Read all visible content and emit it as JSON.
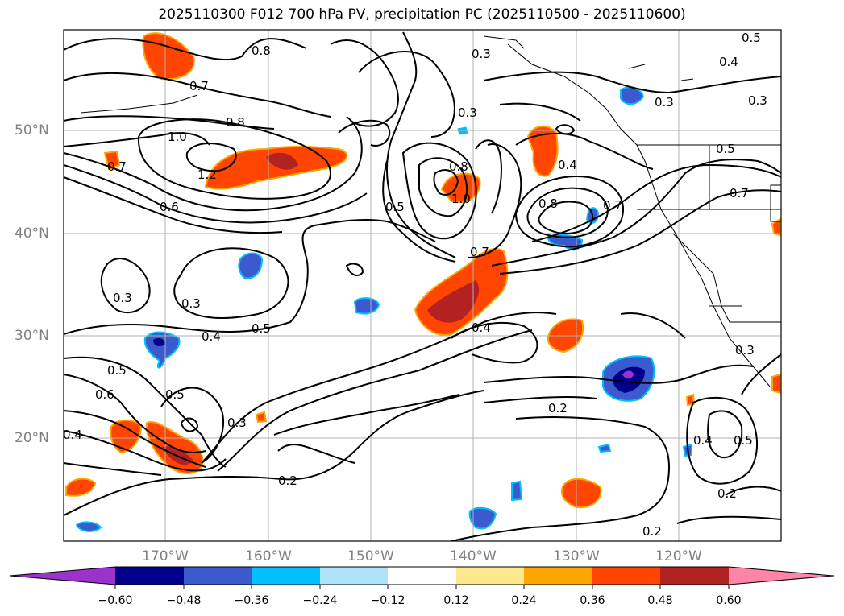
{
  "title": "2025110300 F012 700 hPa PV, precipitation PC (2025110500 - 2025110600)",
  "lat_labels": [
    "50°N",
    "40°N",
    "30°N",
    "20°N"
  ],
  "lon_labels": [
    "170°W",
    "160°W",
    "150°W",
    "140°W",
    "130°W",
    "120°W"
  ],
  "colorbar": {
    "ticks": [
      "−0.60",
      "−0.48",
      "−0.36",
      "−0.24",
      "−0.12",
      "0.12",
      "0.24",
      "0.36",
      "0.48",
      "0.60"
    ],
    "colors": [
      "#9a33cc",
      "#00008b",
      "#3a5acd",
      "#00bfff",
      "#aee3fa",
      "#ffffff",
      "#fde88d",
      "#ffa500",
      "#ff4500",
      "#b22222",
      "#ff85a8"
    ]
  },
  "contour_labels": [
    "0.8",
    "0.7",
    "0.8",
    "1.0",
    "1.2",
    "0.7",
    "0.6",
    "0.3",
    "0.3",
    "0.3",
    "0.4",
    "0.5",
    "0.5",
    "0.6",
    "0.5",
    "0.3",
    "0.4",
    "0.2",
    "0.5",
    "1.0",
    "0.8",
    "0.7",
    "0.4",
    "0.3",
    "0.8",
    "0.7",
    "0.4",
    "0.5",
    "0.3",
    "0.3",
    "0.5",
    "0.7",
    "0.2",
    "0.4",
    "0.5",
    "0.2",
    "0.2",
    "0.3",
    "0.4"
  ]
}
